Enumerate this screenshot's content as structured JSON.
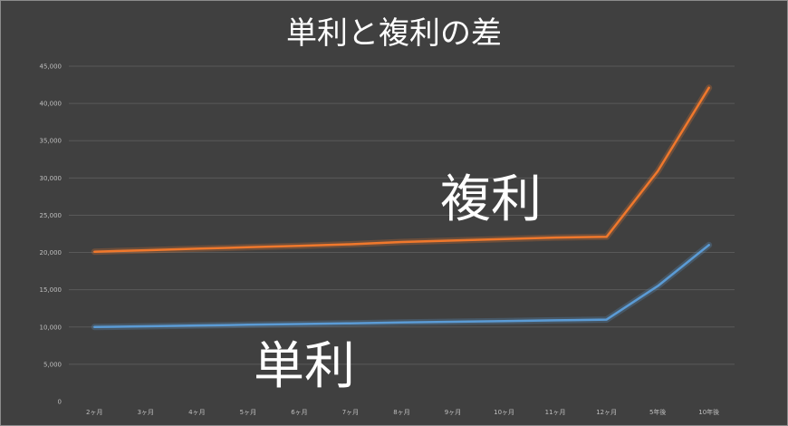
{
  "chart_data": {
    "type": "line",
    "title": "単利と複利の差",
    "categories": [
      "2ヶ月",
      "3ヶ月",
      "4ヶ月",
      "5ヶ月",
      "6ヶ月",
      "7ヶ月",
      "8ヶ月",
      "9ヶ月",
      "10ヶ月",
      "11ヶ月",
      "12ヶ月",
      "5年後",
      "10年後"
    ],
    "series": [
      {
        "name": "複利",
        "color": "#f0782c",
        "values": [
          20100,
          20300,
          20500,
          20700,
          20900,
          21100,
          21400,
          21600,
          21800,
          22000,
          22100,
          30900,
          42100
        ]
      },
      {
        "name": "単利",
        "color": "#5b9bd5",
        "values": [
          10000,
          10100,
          10200,
          10300,
          10400,
          10500,
          10600,
          10700,
          10800,
          10900,
          11000,
          15500,
          21000
        ]
      }
    ],
    "yticks": [
      "0",
      "5,000",
      "10,000",
      "15,000",
      "20,000",
      "25,000",
      "30,000",
      "35,000",
      "40,000",
      "45,000"
    ],
    "ylim": [
      0,
      45000
    ],
    "grid": true,
    "legend": "none"
  }
}
